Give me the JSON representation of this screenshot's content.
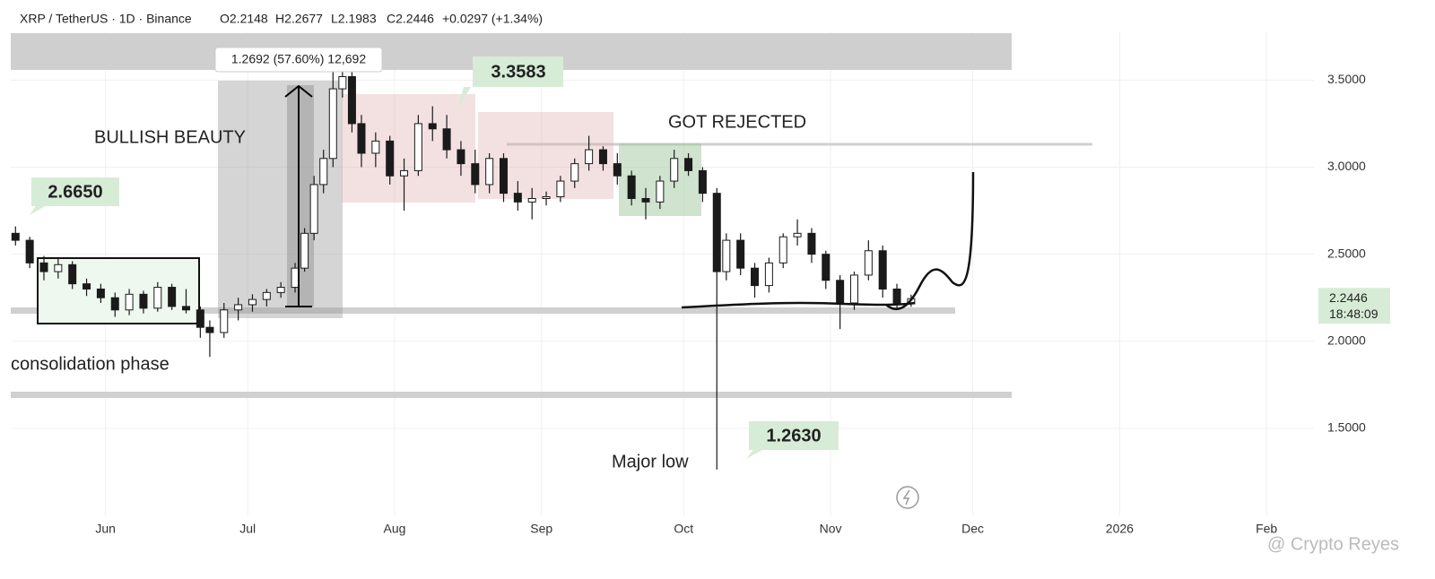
{
  "chart_data": {
    "type": "candlestick",
    "header": {
      "symbol": "XRP / TetherUS · 1D · Binance",
      "ohlc": [
        "O2.2148",
        "H2.2677",
        "L2.1983",
        "C2.2446",
        "+0.0297 (+1.34%)"
      ]
    },
    "x": [
      132,
      135,
      138,
      141,
      144,
      147,
      150,
      153,
      156,
      159,
      162,
      165,
      168,
      171,
      173,
      176,
      179,
      182,
      185,
      188,
      191,
      193,
      195,
      197,
      199,
      201,
      203,
      205,
      208,
      211,
      214,
      217,
      220,
      223,
      226,
      229,
      232,
      235,
      238,
      241,
      244,
      247,
      250,
      253,
      256,
      259,
      262,
      265,
      268,
      271,
      274,
      277,
      280,
      282,
      285,
      288,
      291,
      294,
      297,
      300,
      303,
      306,
      309,
      312,
      315,
      318,
      321
    ],
    "open": [
      2.62,
      2.58,
      2.45,
      2.4,
      2.44,
      2.33,
      2.3,
      2.25,
      2.18,
      2.27,
      2.19,
      2.31,
      2.2,
      2.18,
      2.08,
      2.05,
      2.18,
      2.21,
      2.24,
      2.28,
      2.31,
      2.42,
      2.62,
      2.9,
      3.05,
      3.45,
      3.52,
      3.25,
      3.08,
      3.15,
      2.95,
      2.98,
      3.25,
      3.22,
      3.1,
      3.02,
      2.9,
      3.05,
      2.85,
      2.8,
      2.82,
      2.83,
      2.92,
      3.02,
      3.1,
      3.02,
      2.95,
      2.82,
      2.8,
      2.92,
      3.05,
      2.98,
      2.85,
      2.4,
      2.58,
      2.42,
      2.32,
      2.45,
      2.6,
      2.62,
      2.5,
      2.35,
      2.22,
      2.38,
      2.52,
      2.3,
      2.2148
    ],
    "high": [
      2.66,
      2.6,
      2.49,
      2.48,
      2.46,
      2.36,
      2.33,
      2.28,
      2.3,
      2.29,
      2.34,
      2.33,
      2.3,
      2.2,
      2.12,
      2.22,
      2.25,
      2.27,
      2.3,
      2.34,
      2.45,
      2.65,
      2.95,
      3.1,
      3.55,
      3.66,
      3.58,
      3.3,
      3.2,
      3.18,
      3.05,
      3.3,
      3.35,
      3.3,
      3.15,
      3.1,
      3.08,
      3.08,
      2.92,
      2.88,
      2.86,
      2.95,
      3.05,
      3.18,
      3.12,
      3.08,
      2.98,
      2.88,
      2.95,
      3.1,
      3.08,
      3.0,
      2.88,
      2.62,
      2.62,
      2.45,
      2.48,
      2.62,
      2.7,
      2.65,
      2.52,
      2.38,
      2.4,
      2.58,
      2.55,
      2.33,
      2.2677
    ],
    "low": [
      2.55,
      2.42,
      2.35,
      2.36,
      2.3,
      2.26,
      2.22,
      2.14,
      2.15,
      2.16,
      2.17,
      2.18,
      2.16,
      2.02,
      1.91,
      2.02,
      2.12,
      2.17,
      2.2,
      2.25,
      2.28,
      2.4,
      2.58,
      2.85,
      3.0,
      3.4,
      3.2,
      3.0,
      3.0,
      2.9,
      2.75,
      2.95,
      3.15,
      3.05,
      2.95,
      2.85,
      2.85,
      2.8,
      2.75,
      2.7,
      2.78,
      2.8,
      2.88,
      2.98,
      2.98,
      2.9,
      2.78,
      2.7,
      2.76,
      2.88,
      2.95,
      2.8,
      1.263,
      2.35,
      2.38,
      2.25,
      2.28,
      2.42,
      2.55,
      2.45,
      2.3,
      2.07,
      2.18,
      2.35,
      2.25,
      2.18,
      2.1983
    ],
    "close": [
      2.58,
      2.45,
      2.4,
      2.44,
      2.33,
      2.3,
      2.25,
      2.18,
      2.27,
      2.19,
      2.31,
      2.2,
      2.18,
      2.08,
      2.05,
      2.18,
      2.21,
      2.24,
      2.28,
      2.31,
      2.42,
      2.62,
      2.9,
      3.05,
      3.45,
      3.52,
      3.25,
      3.08,
      3.15,
      2.95,
      2.98,
      3.25,
      3.22,
      3.1,
      3.02,
      2.9,
      3.05,
      2.85,
      2.8,
      2.82,
      2.83,
      2.92,
      3.02,
      3.1,
      3.02,
      2.95,
      2.82,
      2.8,
      2.92,
      3.05,
      2.98,
      2.85,
      2.4,
      2.58,
      2.42,
      2.32,
      2.45,
      2.6,
      2.62,
      2.5,
      2.35,
      2.22,
      2.38,
      2.52,
      2.3,
      2.21,
      2.2446
    ],
    "up_color": "#ffffff",
    "down_color": "#1a1a1a",
    "xlim": [
      131,
      406
    ],
    "xticks": [
      {
        "value": 151,
        "label": "Jun"
      },
      {
        "value": 181,
        "label": "Jul"
      },
      {
        "value": 212,
        "label": "Aug"
      },
      {
        "value": 243,
        "label": "Sep"
      },
      {
        "value": 273,
        "label": "Oct"
      },
      {
        "value": 304,
        "label": "Nov"
      },
      {
        "value": 334,
        "label": "Dec"
      },
      {
        "value": 365,
        "label": "2026"
      },
      {
        "value": 396,
        "label": "Feb"
      }
    ],
    "ylim": [
      1.0,
      3.78
    ],
    "yticks": [
      {
        "value": 1.5,
        "label": "1.5000"
      },
      {
        "value": 2.0,
        "label": "2.0000"
      },
      {
        "value": 2.5,
        "label": "2.5000"
      },
      {
        "value": 3.0,
        "label": "3.0000"
      },
      {
        "value": 3.5,
        "label": "3.5000"
      }
    ],
    "grid": true,
    "last_price": {
      "label": "2.2446",
      "countdown": "18:48:09"
    },
    "annotations": {
      "bullish": "BULLISH BEAUTY",
      "rejected": "GOT REJECTED",
      "consolidation": "consolidation phase",
      "major_low": "Major low"
    },
    "price_labels": [
      "2.6650",
      "3.3583",
      "1.2630"
    ],
    "measure": "1.2692 (57.60%) 12,692",
    "watermark": "@ Crypto Reyes"
  }
}
